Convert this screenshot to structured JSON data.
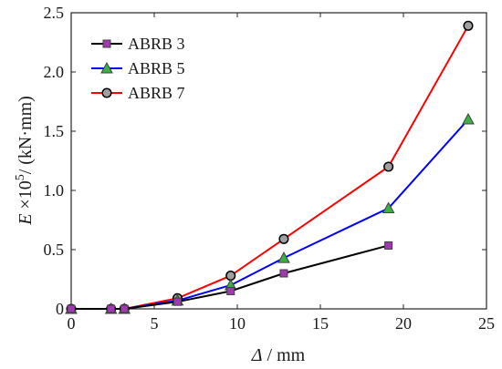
{
  "chart_data": {
    "type": "line",
    "xlabel": {
      "italic": "Δ",
      "rest": " / mm"
    },
    "ylabel": {
      "italic": "E",
      "mid": " ×10",
      "sup": "5",
      "rest": "/ (kN·mm)"
    },
    "xlim": [
      0,
      25
    ],
    "ylim": [
      0,
      2.5
    ],
    "xticks": [
      0,
      5,
      10,
      15,
      20,
      25
    ],
    "xtick_labels": [
      "0",
      "5",
      "10",
      "15",
      "20",
      "25"
    ],
    "yticks": [
      0,
      0.5,
      1.0,
      1.5,
      2.0,
      2.5
    ],
    "ytick_labels": [
      "0",
      "0.5",
      "1.0",
      "1.5",
      "2.0",
      "2.5"
    ],
    "grid": false,
    "legend_position": "top-left",
    "series": [
      {
        "name": "ABRB 3",
        "color": "#000000",
        "marker": "square",
        "marker_fill": "#a03ab0",
        "x": [
          0,
          2.4,
          3.2,
          6.4,
          9.6,
          12.8,
          19.1
        ],
        "y": [
          0,
          0,
          0,
          0.06,
          0.15,
          0.3,
          0.535
        ]
      },
      {
        "name": "ABRB 5",
        "color": "#0000ff",
        "marker": "triangle",
        "marker_fill": "#3cb043",
        "x": [
          0,
          2.4,
          3.2,
          6.4,
          9.6,
          12.8,
          19.1,
          23.9
        ],
        "y": [
          0,
          0,
          0,
          0.07,
          0.2,
          0.43,
          0.85,
          1.6
        ]
      },
      {
        "name": "ABRB 7",
        "color": "#ff0000",
        "marker": "circle",
        "marker_fill": "#a0a0a0",
        "x": [
          0,
          2.4,
          3.2,
          6.4,
          9.6,
          12.8,
          19.1,
          23.9
        ],
        "y": [
          0,
          0,
          0,
          0.09,
          0.28,
          0.59,
          1.2,
          2.39
        ]
      }
    ]
  }
}
